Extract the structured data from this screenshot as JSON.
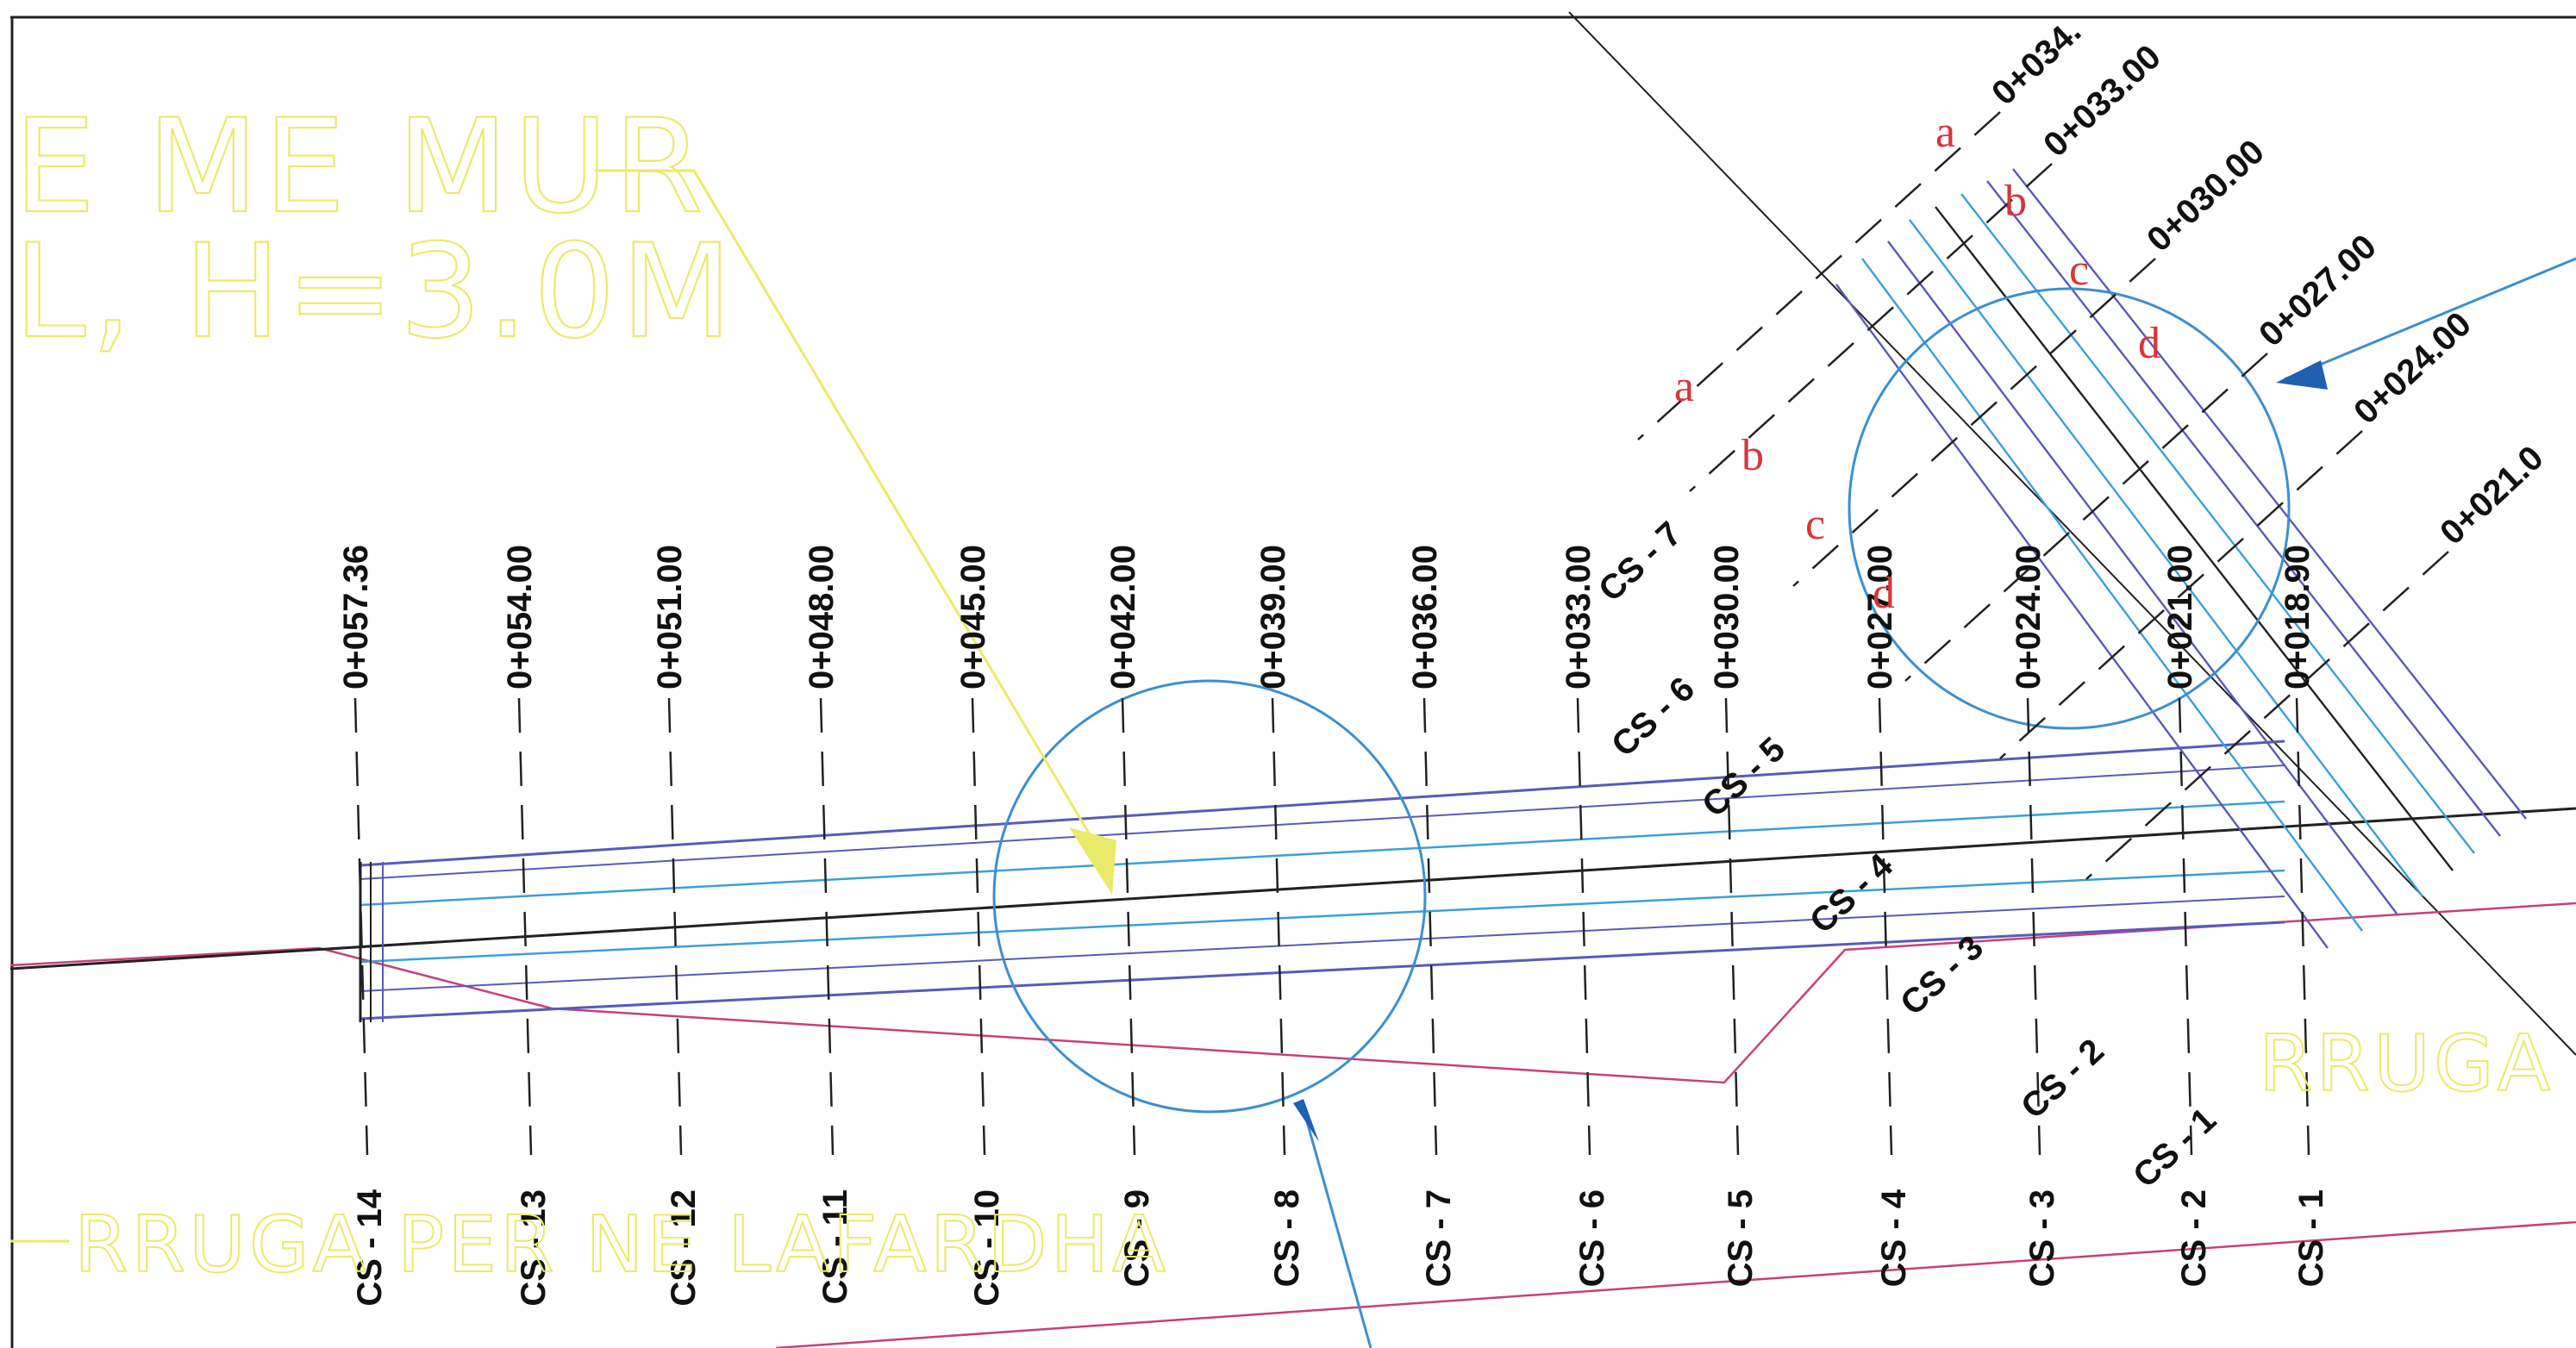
{
  "main_alignment": {
    "stations": [
      "0+057.36",
      "0+054.00",
      "0+051.00",
      "0+048.00",
      "0+045.00",
      "0+042.00",
      "0+039.00",
      "0+036.00",
      "0+033.00",
      "0+030.00",
      "0+027.00",
      "0+024.00",
      "0+021.00",
      "0+018.90"
    ],
    "cross_sections": [
      "CS - 14",
      "CS - 13",
      "CS - 12",
      "CS - 11",
      "CS - 10",
      "CS - 9",
      "CS - 8",
      "CS - 7",
      "CS - 6",
      "CS - 5",
      "CS - 4",
      "CS - 3",
      "CS - 2",
      "CS - 1"
    ]
  },
  "branch_alignment": {
    "stations": [
      "0+034.",
      "0+033.00",
      "0+030.00",
      "0+027.00",
      "0+024.00",
      "0+021.0"
    ],
    "cross_sections": [
      "CS - 7",
      "CS - 6",
      "CS - 5",
      "CS - 4",
      "CS - 3",
      "CS - 2",
      "CS - 1"
    ]
  },
  "detail_letters": {
    "upper": [
      "a",
      "b",
      "c",
      "d"
    ],
    "left": [
      "a",
      "b",
      "c",
      "d"
    ]
  },
  "wall_note": {
    "line1": "E ME MUR",
    "line2": "L, H=3.0M"
  },
  "road_labels": {
    "bottom": "RRUGA PER NE LAFARDHA",
    "right": "RRUGA"
  },
  "colors": {
    "road_edge": "#5a5ab8",
    "lane": "#3aa0d8",
    "centerline": "#222222",
    "boundary": "#c8407a",
    "annotation": "#eaea6a",
    "callout_circle": "#3c8fd0",
    "detail_letter": "#d9343a"
  }
}
